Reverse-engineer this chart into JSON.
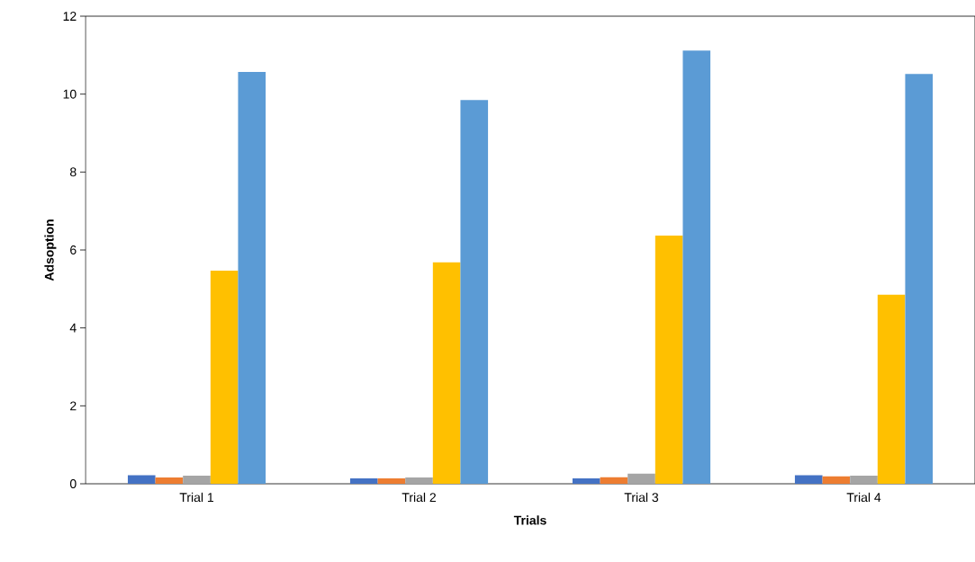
{
  "chart_data": {
    "type": "bar",
    "xlabel": "Trials",
    "ylabel": "Adsoption",
    "categories": [
      "Trial 1",
      "Trial 2",
      "Trial 3",
      "Trial 4"
    ],
    "series": [
      {
        "color": "#4472c4",
        "values": [
          0.22,
          0.14,
          0.14,
          0.22
        ]
      },
      {
        "color": "#ed7d31",
        "values": [
          0.16,
          0.14,
          0.17,
          0.19
        ]
      },
      {
        "color": "#a5a5a5",
        "values": [
          0.21,
          0.16,
          0.26,
          0.21
        ]
      },
      {
        "color": "#ffc000",
        "values": [
          5.47,
          5.68,
          6.37,
          4.85
        ]
      },
      {
        "color": "#5b9bd5",
        "values": [
          10.57,
          9.85,
          11.12,
          10.52
        ]
      }
    ],
    "ylim": [
      0,
      12
    ],
    "yticks": [
      0,
      2,
      4,
      6,
      8,
      10,
      12
    ]
  }
}
